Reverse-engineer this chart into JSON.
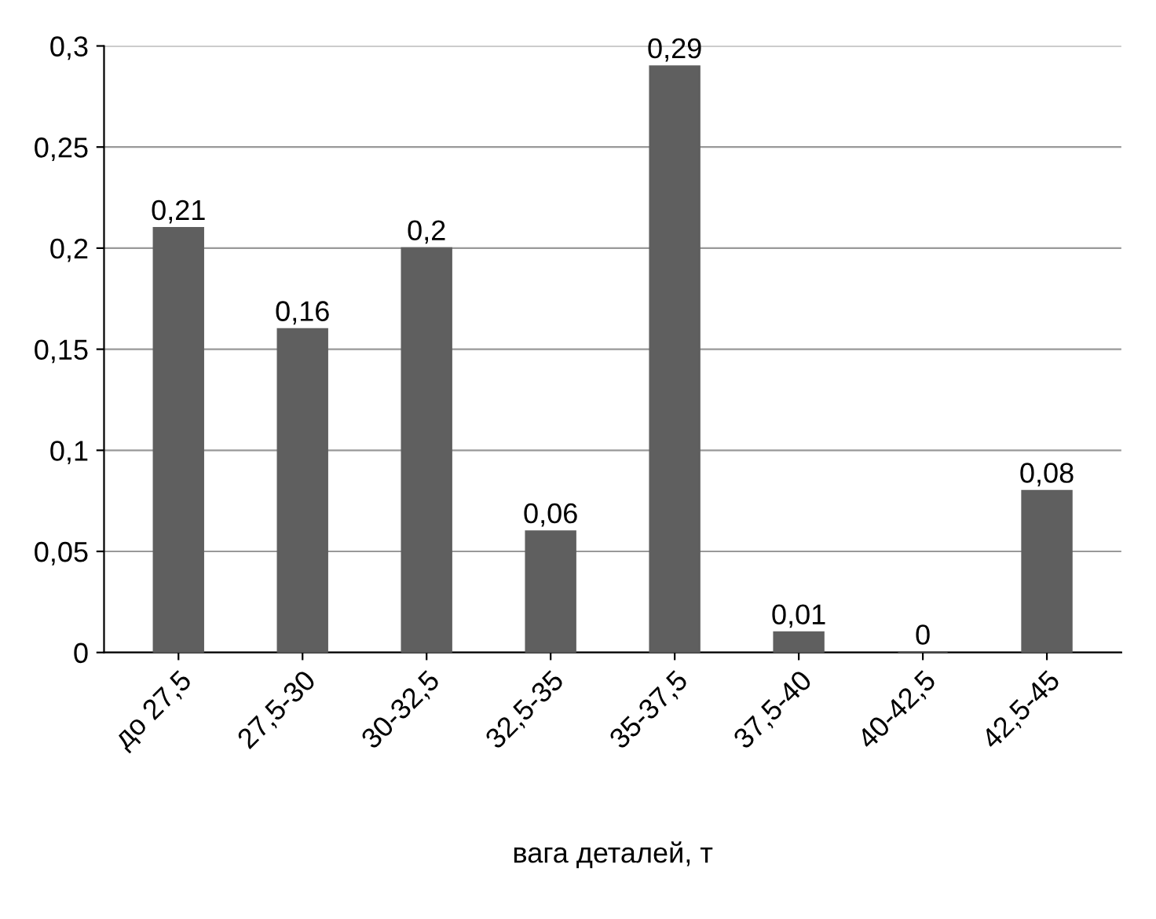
{
  "chart_data": {
    "type": "bar",
    "xlabel": "вага деталей, т",
    "categories": [
      "до 27,5",
      "27,5-30",
      "30-32,5",
      "32,5-35",
      "35-37,5",
      "37,5-40",
      "40-42,5",
      "42,5-45"
    ],
    "values": [
      0.21,
      0.16,
      0.2,
      0.06,
      0.29,
      0.01,
      0,
      0.08
    ],
    "value_labels": [
      "0,21",
      "0,16",
      "0,2",
      "0,06",
      "0,29",
      "0,01",
      "0",
      "0,08"
    ],
    "color": "#5f5f5f",
    "ylim": [
      0,
      0.3
    ],
    "yticks": [
      0,
      {
        "value": 0.05,
        "label": "0,05"
      },
      {
        "value": 0.1,
        "label": "0,1"
      },
      {
        "value": 0.15,
        "label": "0,15"
      },
      {
        "value": 0.2,
        "label": "0,2"
      },
      {
        "value": 0.25,
        "label": "0,25"
      },
      {
        "value": 0.3,
        "label": "0,3"
      }
    ],
    "grid": "y",
    "legend": false
  }
}
